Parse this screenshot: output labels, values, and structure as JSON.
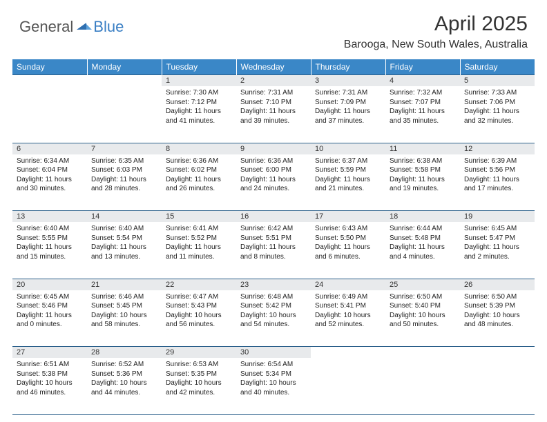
{
  "brand": {
    "general": "General",
    "blue": "Blue"
  },
  "title": "April 2025",
  "location": "Barooga, New South Wales, Australia",
  "header_bg": "#3a87c7",
  "header_fg": "#ffffff",
  "daynum_bg": "#e8eaec",
  "rule_color": "#2a5f8a",
  "weekdays": [
    "Sunday",
    "Monday",
    "Tuesday",
    "Wednesday",
    "Thursday",
    "Friday",
    "Saturday"
  ],
  "weeks": [
    [
      null,
      null,
      {
        "n": "1",
        "sunrise": "7:30 AM",
        "sunset": "7:12 PM",
        "daylight": "11 hours and 41 minutes."
      },
      {
        "n": "2",
        "sunrise": "7:31 AM",
        "sunset": "7:10 PM",
        "daylight": "11 hours and 39 minutes."
      },
      {
        "n": "3",
        "sunrise": "7:31 AM",
        "sunset": "7:09 PM",
        "daylight": "11 hours and 37 minutes."
      },
      {
        "n": "4",
        "sunrise": "7:32 AM",
        "sunset": "7:07 PM",
        "daylight": "11 hours and 35 minutes."
      },
      {
        "n": "5",
        "sunrise": "7:33 AM",
        "sunset": "7:06 PM",
        "daylight": "11 hours and 32 minutes."
      }
    ],
    [
      {
        "n": "6",
        "sunrise": "6:34 AM",
        "sunset": "6:04 PM",
        "daylight": "11 hours and 30 minutes."
      },
      {
        "n": "7",
        "sunrise": "6:35 AM",
        "sunset": "6:03 PM",
        "daylight": "11 hours and 28 minutes."
      },
      {
        "n": "8",
        "sunrise": "6:36 AM",
        "sunset": "6:02 PM",
        "daylight": "11 hours and 26 minutes."
      },
      {
        "n": "9",
        "sunrise": "6:36 AM",
        "sunset": "6:00 PM",
        "daylight": "11 hours and 24 minutes."
      },
      {
        "n": "10",
        "sunrise": "6:37 AM",
        "sunset": "5:59 PM",
        "daylight": "11 hours and 21 minutes."
      },
      {
        "n": "11",
        "sunrise": "6:38 AM",
        "sunset": "5:58 PM",
        "daylight": "11 hours and 19 minutes."
      },
      {
        "n": "12",
        "sunrise": "6:39 AM",
        "sunset": "5:56 PM",
        "daylight": "11 hours and 17 minutes."
      }
    ],
    [
      {
        "n": "13",
        "sunrise": "6:40 AM",
        "sunset": "5:55 PM",
        "daylight": "11 hours and 15 minutes."
      },
      {
        "n": "14",
        "sunrise": "6:40 AM",
        "sunset": "5:54 PM",
        "daylight": "11 hours and 13 minutes."
      },
      {
        "n": "15",
        "sunrise": "6:41 AM",
        "sunset": "5:52 PM",
        "daylight": "11 hours and 11 minutes."
      },
      {
        "n": "16",
        "sunrise": "6:42 AM",
        "sunset": "5:51 PM",
        "daylight": "11 hours and 8 minutes."
      },
      {
        "n": "17",
        "sunrise": "6:43 AM",
        "sunset": "5:50 PM",
        "daylight": "11 hours and 6 minutes."
      },
      {
        "n": "18",
        "sunrise": "6:44 AM",
        "sunset": "5:48 PM",
        "daylight": "11 hours and 4 minutes."
      },
      {
        "n": "19",
        "sunrise": "6:45 AM",
        "sunset": "5:47 PM",
        "daylight": "11 hours and 2 minutes."
      }
    ],
    [
      {
        "n": "20",
        "sunrise": "6:45 AM",
        "sunset": "5:46 PM",
        "daylight": "11 hours and 0 minutes."
      },
      {
        "n": "21",
        "sunrise": "6:46 AM",
        "sunset": "5:45 PM",
        "daylight": "10 hours and 58 minutes."
      },
      {
        "n": "22",
        "sunrise": "6:47 AM",
        "sunset": "5:43 PM",
        "daylight": "10 hours and 56 minutes."
      },
      {
        "n": "23",
        "sunrise": "6:48 AM",
        "sunset": "5:42 PM",
        "daylight": "10 hours and 54 minutes."
      },
      {
        "n": "24",
        "sunrise": "6:49 AM",
        "sunset": "5:41 PM",
        "daylight": "10 hours and 52 minutes."
      },
      {
        "n": "25",
        "sunrise": "6:50 AM",
        "sunset": "5:40 PM",
        "daylight": "10 hours and 50 minutes."
      },
      {
        "n": "26",
        "sunrise": "6:50 AM",
        "sunset": "5:39 PM",
        "daylight": "10 hours and 48 minutes."
      }
    ],
    [
      {
        "n": "27",
        "sunrise": "6:51 AM",
        "sunset": "5:38 PM",
        "daylight": "10 hours and 46 minutes."
      },
      {
        "n": "28",
        "sunrise": "6:52 AM",
        "sunset": "5:36 PM",
        "daylight": "10 hours and 44 minutes."
      },
      {
        "n": "29",
        "sunrise": "6:53 AM",
        "sunset": "5:35 PM",
        "daylight": "10 hours and 42 minutes."
      },
      {
        "n": "30",
        "sunrise": "6:54 AM",
        "sunset": "5:34 PM",
        "daylight": "10 hours and 40 minutes."
      },
      null,
      null,
      null
    ]
  ]
}
